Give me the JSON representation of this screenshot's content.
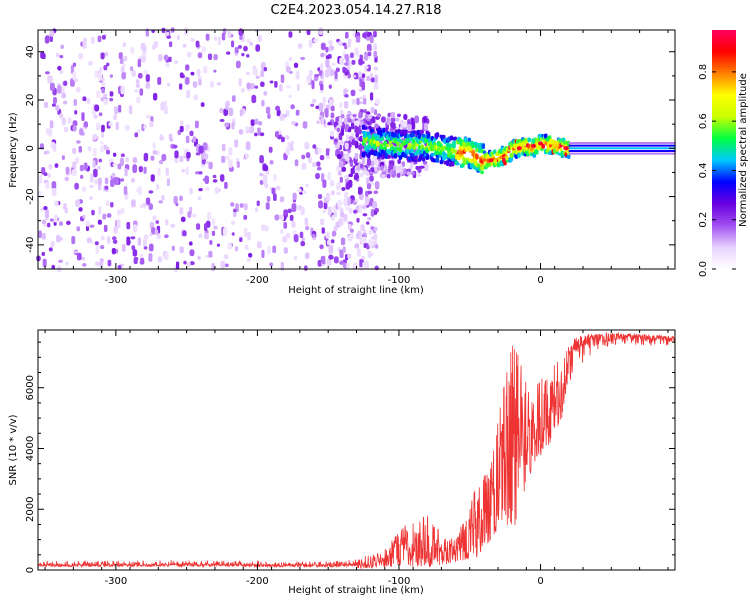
{
  "title": "C2E4.2023.054.14.27.R18",
  "chart_data": [
    {
      "type": "heatmap",
      "xlabel": "Height of straight line (km)",
      "ylabel": "Frequency (Hz)",
      "xlim": [
        -355,
        95
      ],
      "ylim": [
        -50,
        49
      ],
      "xticks": [
        -300,
        -200,
        -100,
        0
      ],
      "yticks": [
        -40,
        -20,
        0,
        20,
        40
      ],
      "colorbar": {
        "label": "Normalized spectral amplitude",
        "range": [
          0,
          0.97
        ],
        "ticks": [
          0.0,
          0.2,
          0.4,
          0.6,
          0.8
        ],
        "colormap": [
          "#ffffff",
          "#e8d2ff",
          "#a050f0",
          "#6a00e0",
          "#0000ff",
          "#00c8ff",
          "#00ff40",
          "#c8ff00",
          "#ffff00",
          "#ff8000",
          "#ff0000",
          "#ff0060"
        ]
      },
      "features": [
        {
          "name": "broadband noise",
          "x_range": [
            -355,
            -130
          ],
          "y_range": [
            -50,
            49
          ],
          "amplitude": 0.12
        },
        {
          "name": "noise fading",
          "x_range": [
            -145,
            -80
          ],
          "y_range": [
            -12,
            14
          ],
          "amplitude": 0.2
        },
        {
          "name": "signal track",
          "points": [
            [
              -125,
              3
            ],
            [
              -110,
              2
            ],
            [
              -95,
              1
            ],
            [
              -80,
              1
            ],
            [
              -65,
              -1
            ],
            [
              -50,
              -2
            ],
            [
              -42,
              -5
            ],
            [
              -35,
              -5
            ],
            [
              -25,
              -3
            ],
            [
              -18,
              0
            ],
            [
              -10,
              1
            ],
            [
              -5,
              0
            ],
            [
              0,
              2
            ],
            [
              10,
              1
            ],
            [
              20,
              0
            ],
            [
              40,
              0
            ],
            [
              95,
              0
            ]
          ],
          "amplitude": 0.85
        }
      ]
    },
    {
      "type": "line",
      "xlabel": "Height of straight line (km)",
      "ylabel": "SNR (10 * v/v)",
      "xlim": [
        -355,
        95
      ],
      "ylim": [
        0,
        7900
      ],
      "xticks": [
        -300,
        -200,
        -100,
        0
      ],
      "yticks": [
        0,
        2000,
        4000,
        6000
      ],
      "color": "#ee3333",
      "envelope": [
        {
          "x": -355,
          "low": 50,
          "high": 300
        },
        {
          "x": -250,
          "low": 50,
          "high": 320
        },
        {
          "x": -150,
          "low": 40,
          "high": 280
        },
        {
          "x": -130,
          "low": 50,
          "high": 350
        },
        {
          "x": -110,
          "low": 80,
          "high": 700
        },
        {
          "x": -95,
          "low": 100,
          "high": 1500
        },
        {
          "x": -80,
          "low": 100,
          "high": 1800
        },
        {
          "x": -65,
          "low": 200,
          "high": 900
        },
        {
          "x": -55,
          "low": 300,
          "high": 1500
        },
        {
          "x": -45,
          "low": 400,
          "high": 2800
        },
        {
          "x": -35,
          "low": 1000,
          "high": 3400
        },
        {
          "x": -28,
          "low": 1500,
          "high": 5500
        },
        {
          "x": -20,
          "low": 1000,
          "high": 7400
        },
        {
          "x": -15,
          "low": 2000,
          "high": 7000
        },
        {
          "x": -5,
          "low": 3500,
          "high": 6000
        },
        {
          "x": 5,
          "low": 4000,
          "high": 6500
        },
        {
          "x": 15,
          "low": 5000,
          "high": 7000
        },
        {
          "x": 25,
          "low": 6500,
          "high": 7700
        },
        {
          "x": 40,
          "low": 7200,
          "high": 7800
        },
        {
          "x": 60,
          "low": 7300,
          "high": 7800
        },
        {
          "x": 95,
          "low": 7300,
          "high": 7700
        }
      ]
    }
  ]
}
